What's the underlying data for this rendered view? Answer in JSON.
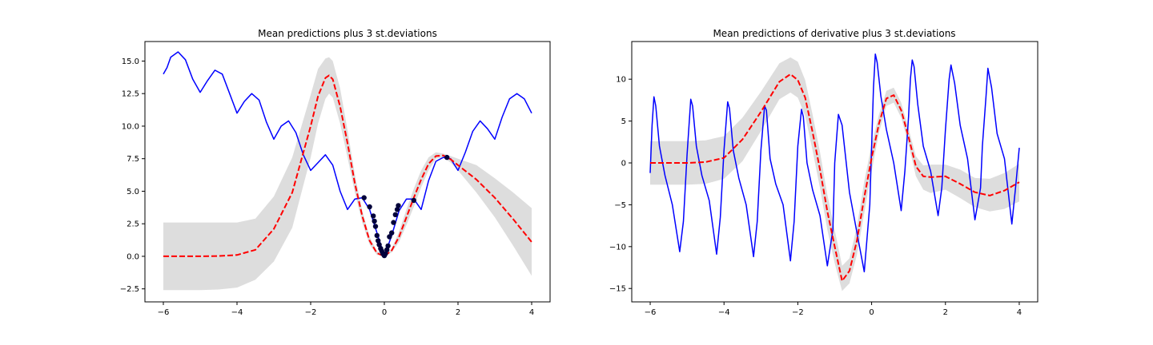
{
  "chart_data": [
    {
      "type": "line",
      "title": "Mean predictions plus 3 st.deviations",
      "xlabel": "",
      "ylabel": "",
      "xlim": [
        -6.5,
        4.5
      ],
      "ylim": [
        -3.5,
        16.5
      ],
      "xticks": [
        -6,
        -4,
        -2,
        0,
        2,
        4
      ],
      "xtick_labels": [
        "−6",
        "−4",
        "−2",
        "0",
        "2",
        "4"
      ],
      "yticks": [
        -2.5,
        0.0,
        2.5,
        5.0,
        7.5,
        10.0,
        12.5,
        15.0
      ],
      "ytick_labels": [
        "−2.5",
        "0.0",
        "2.5",
        "5.0",
        "7.5",
        "10.0",
        "12.5",
        "15.0"
      ],
      "grid": false,
      "colors": {
        "band": "#dddddd",
        "mean": "#ff0000",
        "true": "#0000ff",
        "points": "#00003a"
      },
      "series": [
        {
          "style": "band",
          "x": [
            -6.0,
            -5.0,
            -4.5,
            -4.0,
            -3.5,
            -3.0,
            -2.5,
            -2.0,
            -1.8,
            -1.6,
            -1.5,
            -1.4,
            -1.2,
            -1.0,
            -0.8,
            -0.6,
            -0.4,
            -0.2,
            0.0,
            0.2,
            0.4,
            0.6,
            0.8,
            1.0,
            1.2,
            1.4,
            1.6,
            1.8,
            2.0,
            2.5,
            3.0,
            3.5,
            4.0
          ],
          "lower": [
            -2.6,
            -2.6,
            -2.55,
            -2.4,
            -1.8,
            -0.4,
            2.2,
            7.6,
            10.2,
            12.1,
            12.5,
            12.2,
            10.2,
            7.6,
            4.9,
            2.6,
            0.9,
            0.1,
            0.0,
            0.3,
            1.1,
            2.4,
            3.8,
            5.3,
            6.6,
            7.5,
            7.6,
            7.2,
            6.6,
            4.9,
            3.0,
            0.8,
            -1.5
          ],
          "upper": [
            2.6,
            2.6,
            2.6,
            2.6,
            2.9,
            4.6,
            7.6,
            12.4,
            14.4,
            15.2,
            15.3,
            15.0,
            12.9,
            9.7,
            6.3,
            3.5,
            1.5,
            0.4,
            0.0,
            0.6,
            1.9,
            3.6,
            5.2,
            6.6,
            7.6,
            8.0,
            7.9,
            7.7,
            7.5,
            7.0,
            6.0,
            4.9,
            3.7
          ]
        },
        {
          "style": "true",
          "x": [
            -6.0,
            -5.9,
            -5.8,
            -5.6,
            -5.4,
            -5.2,
            -5.0,
            -4.8,
            -4.6,
            -4.4,
            -4.2,
            -4.0,
            -3.8,
            -3.6,
            -3.4,
            -3.2,
            -3.0,
            -2.8,
            -2.6,
            -2.4,
            -2.2,
            -2.0,
            -1.8,
            -1.6,
            -1.4,
            -1.2,
            -1.0,
            -0.8,
            -0.6,
            -0.4,
            -0.2,
            0.0,
            0.2,
            0.4,
            0.6,
            0.8,
            1.0,
            1.2,
            1.4,
            1.6,
            1.8,
            2.0,
            2.2,
            2.4,
            2.6,
            2.8,
            3.0,
            3.2,
            3.4,
            3.6,
            3.8,
            4.0
          ],
          "y": [
            14.0,
            14.5,
            15.3,
            15.7,
            15.1,
            13.6,
            12.6,
            13.5,
            14.3,
            14.0,
            12.5,
            11.0,
            11.9,
            12.5,
            12.0,
            10.3,
            9.0,
            10.0,
            10.4,
            9.5,
            7.8,
            6.6,
            7.2,
            7.8,
            7.0,
            5.0,
            3.6,
            4.4,
            4.5,
            3.6,
            1.8,
            0.0,
            1.6,
            3.5,
            4.4,
            4.4,
            3.6,
            5.8,
            7.3,
            7.6,
            7.5,
            6.6,
            8.0,
            9.6,
            10.4,
            9.8,
            9.0,
            10.7,
            12.1,
            12.5,
            12.1,
            11.0
          ]
        },
        {
          "style": "mean",
          "x": [
            -6.0,
            -5.0,
            -4.5,
            -4.0,
            -3.5,
            -3.0,
            -2.5,
            -2.0,
            -1.8,
            -1.6,
            -1.5,
            -1.4,
            -1.2,
            -1.0,
            -0.8,
            -0.6,
            -0.4,
            -0.2,
            0.0,
            0.2,
            0.4,
            0.6,
            0.8,
            1.0,
            1.2,
            1.4,
            1.6,
            1.8,
            2.0,
            2.5,
            3.0,
            3.5,
            4.0
          ],
          "y": [
            0.0,
            0.0,
            0.02,
            0.1,
            0.5,
            2.1,
            4.9,
            10.0,
            12.3,
            13.7,
            13.9,
            13.6,
            11.5,
            8.7,
            5.6,
            3.1,
            1.2,
            0.25,
            0.0,
            0.45,
            1.5,
            3.0,
            4.5,
            5.9,
            7.1,
            7.7,
            7.75,
            7.45,
            7.0,
            5.9,
            4.5,
            2.85,
            1.1
          ]
        },
        {
          "style": "points",
          "x": [
            -0.55,
            -0.4,
            -0.3,
            -0.27,
            -0.24,
            -0.2,
            -0.17,
            -0.14,
            -0.1,
            -0.07,
            -0.04,
            0.0,
            0.03,
            0.07,
            0.1,
            0.14,
            0.2,
            0.25,
            0.3,
            0.35,
            0.38,
            0.8,
            1.7
          ],
          "y": [
            4.5,
            3.8,
            3.1,
            2.7,
            2.3,
            1.6,
            1.2,
            0.9,
            0.6,
            0.4,
            0.2,
            0.05,
            0.2,
            0.5,
            0.8,
            1.5,
            1.8,
            2.6,
            3.2,
            3.6,
            3.9,
            4.3,
            7.6
          ]
        }
      ]
    },
    {
      "type": "line",
      "title": "Mean predictions of derivative plus 3 st.deviations",
      "xlabel": "",
      "ylabel": "",
      "xlim": [
        -6.5,
        4.5
      ],
      "ylim": [
        -16.6,
        14.5
      ],
      "xticks": [
        -6,
        -4,
        -2,
        0,
        2,
        4
      ],
      "xtick_labels": [
        "−6",
        "−4",
        "−2",
        "0",
        "2",
        "4"
      ],
      "yticks": [
        -15,
        -10,
        -5,
        0,
        5,
        10
      ],
      "ytick_labels": [
        "−15",
        "−10",
        "−5",
        "0",
        "5",
        "10"
      ],
      "grid": false,
      "colors": {
        "band": "#dddddd",
        "mean": "#ff0000",
        "true": "#0000ff"
      },
      "series": [
        {
          "style": "band",
          "x": [
            -6.0,
            -5.0,
            -4.5,
            -4.0,
            -3.5,
            -3.0,
            -2.5,
            -2.2,
            -2.0,
            -1.8,
            -1.6,
            -1.4,
            -1.2,
            -1.0,
            -0.8,
            -0.6,
            -0.4,
            -0.2,
            0.0,
            0.2,
            0.4,
            0.6,
            0.8,
            1.0,
            1.2,
            1.4,
            1.6,
            2.0,
            2.4,
            2.8,
            3.2,
            3.6,
            4.0
          ],
          "lower": [
            -2.6,
            -2.6,
            -2.5,
            -1.9,
            0.2,
            3.8,
            7.6,
            8.4,
            7.8,
            5.6,
            1.5,
            -3.0,
            -8.0,
            -12.0,
            -15.3,
            -14.4,
            -11.0,
            -6.0,
            -1.0,
            3.6,
            6.8,
            7.2,
            5.4,
            2.2,
            -1.6,
            -3.2,
            -3.6,
            -3.2,
            -4.2,
            -5.3,
            -5.8,
            -5.5,
            -4.6
          ],
          "upper": [
            2.6,
            2.6,
            2.7,
            3.2,
            5.4,
            8.5,
            11.9,
            12.6,
            12.1,
            9.9,
            5.8,
            1.3,
            -3.8,
            -8.0,
            -12.3,
            -11.4,
            -7.6,
            -2.2,
            2.2,
            5.8,
            8.6,
            9.0,
            7.2,
            4.1,
            0.8,
            -0.3,
            -0.2,
            -0.2,
            -0.8,
            -1.8,
            -1.9,
            -1.2,
            -0.1
          ]
        },
        {
          "style": "true",
          "x": [
            -6.0,
            -5.95,
            -5.9,
            -5.85,
            -5.75,
            -5.6,
            -5.4,
            -5.2,
            -5.1,
            -5.0,
            -4.9,
            -4.85,
            -4.75,
            -4.6,
            -4.4,
            -4.2,
            -4.1,
            -4.0,
            -3.9,
            -3.85,
            -3.75,
            -3.6,
            -3.4,
            -3.2,
            -3.1,
            -3.0,
            -2.9,
            -2.85,
            -2.75,
            -2.6,
            -2.4,
            -2.2,
            -2.1,
            -2.0,
            -1.9,
            -1.85,
            -1.75,
            -1.6,
            -1.4,
            -1.2,
            -1.05,
            -1.0,
            -0.9,
            -0.8,
            -0.6,
            -0.35,
            -0.2,
            -0.05,
            0.0,
            0.05,
            0.1,
            0.15,
            0.25,
            0.4,
            0.6,
            0.8,
            0.9,
            1.0,
            1.05,
            1.1,
            1.15,
            1.25,
            1.4,
            1.6,
            1.8,
            1.9,
            2.0,
            2.1,
            2.15,
            2.25,
            2.4,
            2.6,
            2.8,
            2.95,
            3.0,
            3.1,
            3.15,
            3.25,
            3.4,
            3.6,
            3.8,
            3.9,
            4.0
          ],
          "y": [
            -1.2,
            4.5,
            7.9,
            6.8,
            2.0,
            -1.5,
            -5.0,
            -10.6,
            -7.0,
            1.0,
            7.6,
            6.8,
            2.0,
            -1.5,
            -4.5,
            -10.9,
            -6.5,
            1.5,
            7.3,
            6.5,
            1.5,
            -1.8,
            -5.0,
            -11.2,
            -7.0,
            1.5,
            6.8,
            6.3,
            0.5,
            -2.5,
            -5.0,
            -11.7,
            -7.0,
            2.0,
            6.4,
            5.5,
            0.0,
            -3.2,
            -6.3,
            -12.3,
            -8.0,
            0.0,
            5.8,
            4.5,
            -3.5,
            -9.5,
            -13.0,
            -5.0,
            2.0,
            9.0,
            13.0,
            12.0,
            8.0,
            4.0,
            0.0,
            -5.7,
            -1.0,
            5.5,
            10.0,
            12.3,
            11.5,
            7.0,
            2.0,
            -1.0,
            -6.3,
            -3.0,
            4.0,
            10.0,
            11.7,
            9.5,
            4.5,
            0.5,
            -6.8,
            -3.0,
            2.0,
            8.0,
            11.3,
            9.0,
            3.5,
            0.5,
            -7.3,
            -3.0,
            1.8
          ]
        },
        {
          "style": "mean",
          "x": [
            -6.0,
            -5.0,
            -4.5,
            -4.0,
            -3.5,
            -3.0,
            -2.5,
            -2.2,
            -2.0,
            -1.8,
            -1.6,
            -1.4,
            -1.2,
            -1.0,
            -0.8,
            -0.6,
            -0.4,
            -0.2,
            0.0,
            0.2,
            0.4,
            0.6,
            0.8,
            1.0,
            1.2,
            1.4,
            1.6,
            2.0,
            2.4,
            2.8,
            3.2,
            3.6,
            4.0
          ],
          "y": [
            0.0,
            0.0,
            0.1,
            0.6,
            2.8,
            6.1,
            9.7,
            10.6,
            9.9,
            7.8,
            3.7,
            -0.8,
            -5.8,
            -10.0,
            -14.1,
            -12.9,
            -9.3,
            -4.1,
            0.6,
            4.7,
            7.7,
            8.1,
            6.3,
            3.1,
            -0.4,
            -1.6,
            -1.7,
            -1.6,
            -2.5,
            -3.5,
            -3.9,
            -3.3,
            -2.3
          ]
        }
      ]
    }
  ]
}
